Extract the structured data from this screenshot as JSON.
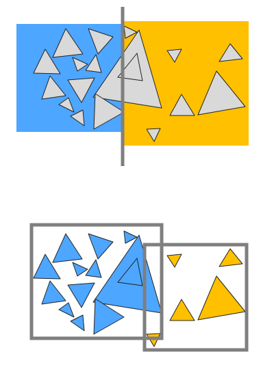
{
  "colors": {
    "background": "#ffffff",
    "blue_region": "#4da6ff",
    "yellow_region": "#ffc000",
    "triangle_neutral": "#d9d9d9",
    "triangle_blue": "#4da6ff",
    "triangle_yellow": "#ffc000",
    "outline": "#222222",
    "divider": "#7f7f7f",
    "box_border": "#7f7f7f"
  },
  "panels": [
    {
      "name": "top-panel",
      "description_id": "split-by-line"
    },
    {
      "name": "bottom-panel",
      "description_id": "split-by-boxes"
    }
  ]
}
